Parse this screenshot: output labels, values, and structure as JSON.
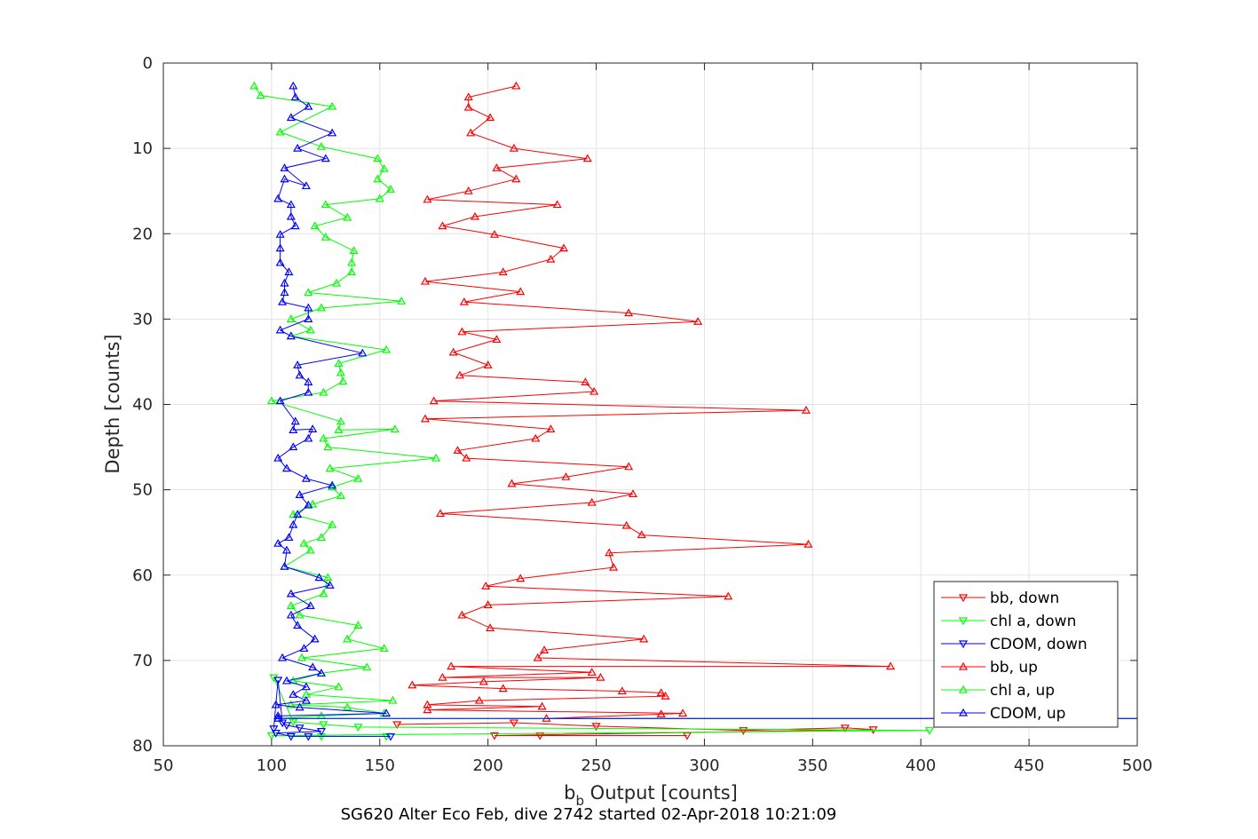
{
  "chart_data": {
    "type": "line",
    "xlabel_main": "b",
    "xlabel_sub": "b",
    "xlabel_rest": " Output [counts]",
    "ylabel": "Depth [counts]",
    "caption": "SG620 Alter Eco Feb, dive 2742 started 02-Apr-2018 10:21:09",
    "xlim": [
      50,
      500
    ],
    "ylim": [
      0,
      80
    ],
    "y_reversed": true,
    "grid": true,
    "legend_position": "bottom-right",
    "xticks": [
      "50",
      "100",
      "150",
      "200",
      "250",
      "300",
      "350",
      "400",
      "450",
      "500"
    ],
    "yticks": [
      "0",
      "10",
      "20",
      "30",
      "40",
      "50",
      "60",
      "70",
      "80"
    ],
    "series": [
      {
        "name": "bb, down",
        "color": "#ff0000",
        "marker": "triangle-down",
        "points": [
          [
            292,
            78.8
          ],
          [
            224,
            78.8
          ],
          [
            203,
            78.8
          ],
          [
            378,
            78.1
          ],
          [
            365,
            77.9
          ],
          [
            318,
            78.2
          ],
          [
            250,
            77.7
          ],
          [
            212,
            77.3
          ],
          [
            158,
            77.5
          ]
        ]
      },
      {
        "name": "chl a, down",
        "color": "#00ff00",
        "marker": "triangle-down",
        "points": [
          [
            153,
            78.9
          ],
          [
            123,
            78.9
          ],
          [
            100,
            78.8
          ],
          [
            404,
            78.2
          ],
          [
            140,
            77.8
          ],
          [
            124,
            77.5
          ],
          [
            110,
            77.2
          ],
          [
            101,
            72.0
          ]
        ]
      },
      {
        "name": "CDOM, down",
        "color": "#0000ff",
        "marker": "triangle-down",
        "points": [
          [
            155,
            78.9
          ],
          [
            117,
            78.9
          ],
          [
            109,
            78.9
          ],
          [
            102,
            78.5
          ],
          [
            123,
            78.3
          ],
          [
            113,
            77.9
          ],
          [
            107,
            77.6
          ],
          [
            105,
            77.3
          ],
          [
            103,
            72.3
          ],
          [
            101,
            78.0
          ]
        ]
      },
      {
        "name": "bb, up",
        "color": "#ff0000",
        "marker": "triangle-up",
        "points": [
          [
            213,
            2.7
          ],
          [
            191,
            4.0
          ],
          [
            191,
            5.2
          ],
          [
            201,
            6.4
          ],
          [
            192,
            8.2
          ],
          [
            212,
            10.0
          ],
          [
            246,
            11.2
          ],
          [
            204,
            12.3
          ],
          [
            213,
            13.6
          ],
          [
            191,
            15.0
          ],
          [
            172,
            16.0
          ],
          [
            232,
            16.6
          ],
          [
            194,
            18.0
          ],
          [
            179,
            19.1
          ],
          [
            203,
            20.1
          ],
          [
            235,
            21.7
          ],
          [
            229,
            23.0
          ],
          [
            207,
            24.5
          ],
          [
            171,
            25.6
          ],
          [
            215,
            26.8
          ],
          [
            189,
            28.0
          ],
          [
            265,
            29.3
          ],
          [
            297,
            30.3
          ],
          [
            188,
            31.5
          ],
          [
            204,
            32.4
          ],
          [
            184,
            33.9
          ],
          [
            200,
            35.4
          ],
          [
            187,
            36.6
          ],
          [
            245,
            37.4
          ],
          [
            249,
            38.5
          ],
          [
            175,
            39.6
          ],
          [
            347,
            40.7
          ],
          [
            171,
            41.7
          ],
          [
            229,
            42.9
          ],
          [
            222,
            44.0
          ],
          [
            186,
            45.4
          ],
          [
            190,
            46.3
          ],
          [
            265,
            47.3
          ],
          [
            236,
            48.5
          ],
          [
            211,
            49.3
          ],
          [
            267,
            50.5
          ],
          [
            248,
            51.5
          ],
          [
            178,
            52.8
          ],
          [
            264,
            54.2
          ],
          [
            271,
            55.3
          ],
          [
            348,
            56.4
          ],
          [
            256,
            57.4
          ],
          [
            258,
            59.1
          ],
          [
            215,
            60.4
          ],
          [
            199,
            61.3
          ],
          [
            311,
            62.5
          ],
          [
            200,
            63.5
          ],
          [
            188,
            64.7
          ],
          [
            201,
            66.2
          ],
          [
            272,
            67.5
          ],
          [
            226,
            68.8
          ],
          [
            223,
            69.7
          ],
          [
            386,
            70.7
          ],
          [
            183,
            70.7
          ],
          [
            248,
            71.4
          ],
          [
            179,
            72.0
          ],
          [
            252,
            72.0
          ],
          [
            198,
            72.5
          ],
          [
            165,
            72.9
          ],
          [
            207,
            73.3
          ],
          [
            262,
            73.6
          ],
          [
            280,
            73.8
          ],
          [
            282,
            74.2
          ],
          [
            196,
            74.7
          ],
          [
            172,
            75.2
          ],
          [
            225,
            75.4
          ],
          [
            172,
            75.8
          ],
          [
            290,
            76.2
          ],
          [
            280,
            76.3
          ],
          [
            227,
            76.8
          ],
          [
            540,
            76.8
          ]
        ]
      },
      {
        "name": "chl a, up",
        "color": "#00ff00",
        "marker": "triangle-up",
        "points": [
          [
            92,
            2.7
          ],
          [
            95,
            3.8
          ],
          [
            128,
            5.1
          ],
          [
            104,
            8.1
          ],
          [
            123,
            9.8
          ],
          [
            149,
            11.2
          ],
          [
            152,
            12.4
          ],
          [
            149,
            13.6
          ],
          [
            155,
            14.8
          ],
          [
            150,
            15.9
          ],
          [
            125,
            16.6
          ],
          [
            135,
            18.1
          ],
          [
            120,
            19.1
          ],
          [
            125,
            20.4
          ],
          [
            138,
            22.0
          ],
          [
            137,
            23.4
          ],
          [
            137,
            24.5
          ],
          [
            130,
            25.8
          ],
          [
            117,
            26.9
          ],
          [
            160,
            27.9
          ],
          [
            123,
            28.7
          ],
          [
            109,
            30.0
          ],
          [
            118,
            31.3
          ],
          [
            109,
            32.0
          ],
          [
            153,
            33.6
          ],
          [
            131,
            35.2
          ],
          [
            132,
            36.3
          ],
          [
            133,
            37.3
          ],
          [
            124,
            38.6
          ],
          [
            100,
            39.6
          ],
          [
            132,
            42.0
          ],
          [
            131,
            43.0
          ],
          [
            157,
            42.9
          ],
          [
            124,
            44.0
          ],
          [
            126,
            45.0
          ],
          [
            176,
            46.3
          ],
          [
            127,
            47.5
          ],
          [
            140,
            48.7
          ],
          [
            128,
            49.7
          ],
          [
            132,
            50.7
          ],
          [
            119,
            51.7
          ],
          [
            110,
            52.9
          ],
          [
            128,
            54.1
          ],
          [
            123,
            55.6
          ],
          [
            115,
            56.3
          ],
          [
            118,
            57.1
          ],
          [
            106,
            59.0
          ],
          [
            126,
            60.3
          ],
          [
            124,
            62.2
          ],
          [
            109,
            63.6
          ],
          [
            113,
            64.7
          ],
          [
            140,
            65.9
          ],
          [
            135,
            67.5
          ],
          [
            152,
            68.6
          ],
          [
            114,
            69.7
          ],
          [
            144,
            70.8
          ],
          [
            123,
            71.5
          ],
          [
            110,
            72.4
          ],
          [
            131,
            73.1
          ],
          [
            116,
            74.0
          ],
          [
            156,
            74.7
          ],
          [
            109,
            75.2
          ],
          [
            135,
            75.5
          ],
          [
            152,
            76.2
          ],
          [
            123,
            76.5
          ],
          [
            103,
            76.8
          ],
          [
            540,
            76.8
          ]
        ]
      },
      {
        "name": "CDOM, up",
        "color": "#0000ff",
        "marker": "triangle-up",
        "points": [
          [
            110,
            2.7
          ],
          [
            111,
            4.0
          ],
          [
            117,
            5.1
          ],
          [
            109,
            6.4
          ],
          [
            128,
            8.2
          ],
          [
            112,
            10.0
          ],
          [
            125,
            11.2
          ],
          [
            106,
            12.3
          ],
          [
            116,
            14.4
          ],
          [
            106,
            13.6
          ],
          [
            103,
            15.9
          ],
          [
            109,
            16.6
          ],
          [
            109,
            18.0
          ],
          [
            111,
            19.1
          ],
          [
            104,
            20.1
          ],
          [
            104,
            21.7
          ],
          [
            104,
            23.4
          ],
          [
            108,
            24.5
          ],
          [
            106,
            25.8
          ],
          [
            106,
            26.9
          ],
          [
            105,
            28.0
          ],
          [
            117,
            28.7
          ],
          [
            117,
            30.0
          ],
          [
            104,
            31.3
          ],
          [
            109,
            32.0
          ],
          [
            142,
            34.0
          ],
          [
            112,
            35.4
          ],
          [
            113,
            36.6
          ],
          [
            117,
            37.4
          ],
          [
            117,
            38.6
          ],
          [
            104,
            39.6
          ],
          [
            111,
            42.0
          ],
          [
            110,
            43.0
          ],
          [
            119,
            42.9
          ],
          [
            117,
            44.0
          ],
          [
            110,
            45.0
          ],
          [
            103,
            46.3
          ],
          [
            107,
            47.5
          ],
          [
            116,
            48.7
          ],
          [
            128,
            49.5
          ],
          [
            113,
            50.6
          ],
          [
            117,
            51.8
          ],
          [
            112,
            52.9
          ],
          [
            110,
            54.1
          ],
          [
            108,
            55.6
          ],
          [
            103,
            56.3
          ],
          [
            107,
            57.1
          ],
          [
            106,
            59.0
          ],
          [
            122,
            60.3
          ],
          [
            127,
            61.2
          ],
          [
            109,
            62.2
          ],
          [
            118,
            63.6
          ],
          [
            109,
            64.7
          ],
          [
            112,
            65.9
          ],
          [
            120,
            67.5
          ],
          [
            115,
            68.6
          ],
          [
            105,
            69.7
          ],
          [
            119,
            70.8
          ],
          [
            123,
            71.5
          ],
          [
            107,
            72.4
          ],
          [
            116,
            73.1
          ],
          [
            110,
            74.0
          ],
          [
            116,
            74.7
          ],
          [
            102,
            75.2
          ],
          [
            113,
            75.5
          ],
          [
            153,
            76.2
          ],
          [
            103,
            76.5
          ],
          [
            103,
            76.8
          ],
          [
            540,
            76.8
          ]
        ]
      }
    ]
  }
}
